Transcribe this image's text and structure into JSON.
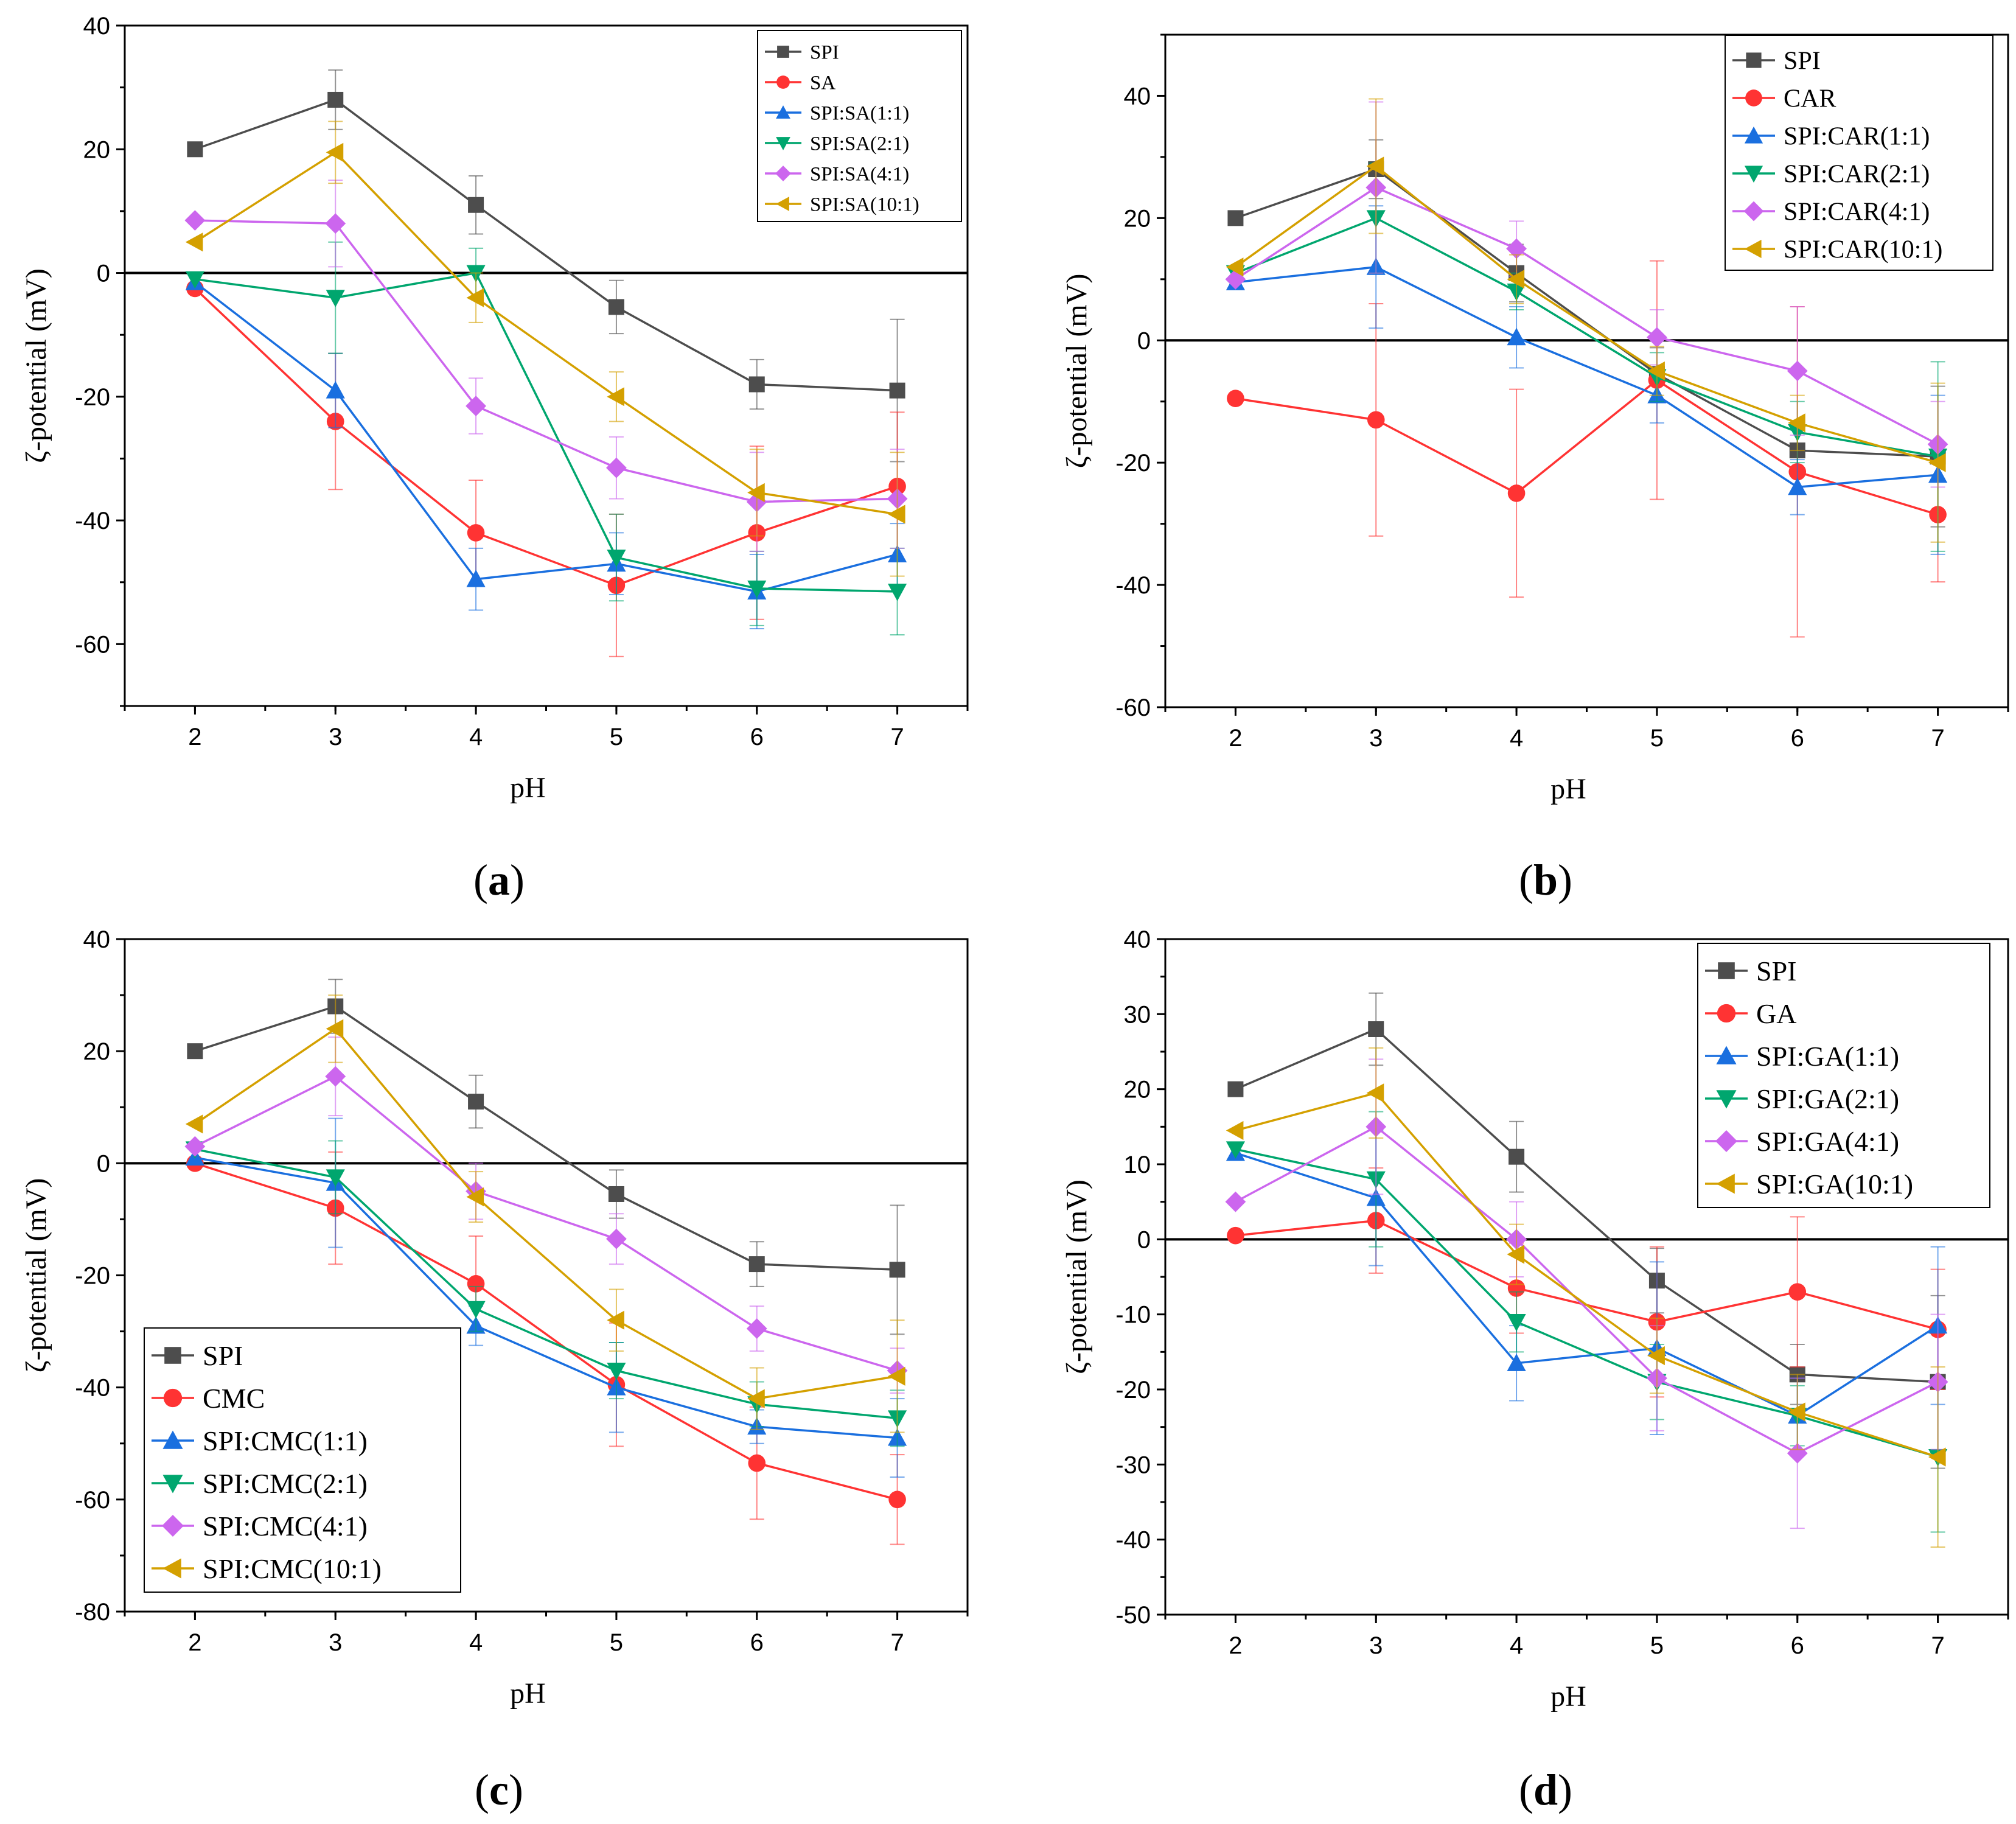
{
  "chart_data": [
    {
      "panel": "a",
      "panel_label_prefix": "(",
      "panel_label_letter": "a",
      "panel_label_suffix": ")",
      "type": "line",
      "xlabel": "pH",
      "ylabel": "ζ-potential (mV)",
      "x": [
        2,
        3,
        4,
        5,
        6,
        7
      ],
      "xlim": [
        1.5,
        7.5
      ],
      "ylim": [
        -70,
        40
      ],
      "yticks": [
        -60,
        -40,
        -20,
        0,
        20,
        40
      ],
      "xticks": [
        2,
        3,
        4,
        5,
        6,
        7
      ],
      "legend_position": "top-right",
      "series": [
        {
          "name": "SPI",
          "color": "#4d4d4d",
          "marker": "square",
          "values": [
            20,
            28,
            11,
            -5.5,
            -18,
            -19
          ],
          "errors": [
            0,
            4.8,
            4.7,
            4.3,
            4,
            11.5
          ]
        },
        {
          "name": "SA",
          "color": "#ff3333",
          "marker": "circle",
          "values": [
            -2.5,
            -24,
            -42,
            -50.5,
            -42,
            -34.5
          ],
          "errors": [
            0,
            11,
            8.5,
            11.5,
            14,
            12
          ]
        },
        {
          "name": "SPI:SA(1:1)",
          "color": "#1a6fdf",
          "marker": "triangle-up",
          "values": [
            -1.5,
            -19,
            -49.5,
            -47,
            -51.5,
            -45.5
          ],
          "errors": [
            0,
            6,
            5,
            5,
            6,
            5
          ]
        },
        {
          "name": "SPI:SA(2:1)",
          "color": "#00a66e",
          "marker": "triangle-down",
          "values": [
            -1,
            -4,
            0,
            -46,
            -51,
            -51.5
          ],
          "errors": [
            0,
            9,
            4,
            7,
            6,
            7
          ]
        },
        {
          "name": "SPI:SA(4:1)",
          "color": "#cc66ee",
          "marker": "diamond",
          "values": [
            8.5,
            8,
            -21.5,
            -31.5,
            -37,
            -36.5
          ],
          "errors": [
            0,
            7,
            4.5,
            5,
            8,
            8
          ]
        },
        {
          "name": "SPI:SA(10:1)",
          "color": "#d4a000",
          "marker": "triangle-left",
          "values": [
            5,
            19.5,
            -4,
            -20,
            -35.5,
            -39
          ],
          "errors": [
            0,
            5,
            4,
            4,
            7,
            10
          ]
        }
      ]
    },
    {
      "panel": "b",
      "panel_label_prefix": "(",
      "panel_label_letter": "b",
      "panel_label_suffix": ")",
      "type": "line",
      "xlabel": "pH",
      "ylabel": "ζ-potential (mV)",
      "x": [
        2,
        3,
        4,
        5,
        6,
        7
      ],
      "xlim": [
        1.5,
        7.5
      ],
      "ylim": [
        -60,
        50
      ],
      "yticks": [
        -60,
        -40,
        -20,
        0,
        20,
        40
      ],
      "xticks": [
        2,
        3,
        4,
        5,
        6,
        7
      ],
      "legend_position": "top-right",
      "series": [
        {
          "name": "SPI",
          "color": "#4d4d4d",
          "marker": "square",
          "values": [
            20,
            28,
            11,
            -5.5,
            -18,
            -19
          ],
          "errors": [
            0,
            4.8,
            4.7,
            4.3,
            4,
            11.5
          ]
        },
        {
          "name": "CAR",
          "color": "#ff3333",
          "marker": "circle",
          "values": [
            -9.5,
            -13,
            -25,
            -6.5,
            -21.5,
            -28.5
          ],
          "errors": [
            0,
            19,
            17,
            19.5,
            27,
            11
          ]
        },
        {
          "name": "SPI:CAR(1:1)",
          "color": "#1a6fdf",
          "marker": "triangle-up",
          "values": [
            9.5,
            12,
            0.5,
            -9,
            -24,
            -22
          ],
          "errors": [
            0,
            10,
            5,
            4.5,
            4.5,
            13
          ]
        },
        {
          "name": "SPI:CAR(2:1)",
          "color": "#00a66e",
          "marker": "triangle-down",
          "values": [
            11,
            20,
            8,
            -6,
            -15,
            -19
          ],
          "errors": [
            0,
            9,
            3,
            4,
            5,
            15.5
          ]
        },
        {
          "name": "SPI:CAR(4:1)",
          "color": "#cc66ee",
          "marker": "diamond",
          "values": [
            10,
            25,
            15,
            0.5,
            -5,
            -17
          ],
          "errors": [
            0,
            14,
            4.5,
            4.5,
            10.5,
            7
          ]
        },
        {
          "name": "SPI:CAR(10:1)",
          "color": "#d4a000",
          "marker": "triangle-left",
          "values": [
            12,
            28.5,
            10,
            -5,
            -13.5,
            -20
          ],
          "errors": [
            0,
            11,
            4,
            4,
            4.5,
            13
          ]
        }
      ]
    },
    {
      "panel": "c",
      "panel_label_prefix": "(",
      "panel_label_letter": "c",
      "panel_label_suffix": ")",
      "type": "line",
      "xlabel": "pH",
      "ylabel": "ζ-potential (mV)",
      "x": [
        2,
        3,
        4,
        5,
        6,
        7
      ],
      "xlim": [
        1.5,
        7.5
      ],
      "ylim": [
        -80,
        40
      ],
      "yticks": [
        -80,
        -60,
        -40,
        -20,
        0,
        20,
        40
      ],
      "xticks": [
        2,
        3,
        4,
        5,
        6,
        7
      ],
      "legend_position": "bottom-left",
      "series": [
        {
          "name": "SPI",
          "color": "#4d4d4d",
          "marker": "square",
          "values": [
            20,
            28,
            11,
            -5.5,
            -18,
            -19
          ],
          "errors": [
            0,
            4.8,
            4.7,
            4.3,
            4,
            11.5
          ]
        },
        {
          "name": "CMC",
          "color": "#ff3333",
          "marker": "circle",
          "values": [
            0,
            -8,
            -21.5,
            -39.5,
            -53.5,
            -60
          ],
          "errors": [
            0,
            10,
            8.5,
            11,
            10,
            8
          ]
        },
        {
          "name": "SPI:CMC(1:1)",
          "color": "#1a6fdf",
          "marker": "triangle-up",
          "values": [
            1,
            -3.5,
            -29,
            -40,
            -47,
            -49
          ],
          "errors": [
            0,
            11.5,
            3.5,
            8,
            3,
            7
          ]
        },
        {
          "name": "SPI:CMC(2:1)",
          "color": "#00a66e",
          "marker": "triangle-down",
          "values": [
            2.5,
            -2.5,
            -26,
            -37,
            -43,
            -45.5
          ],
          "errors": [
            0,
            6.5,
            4,
            5,
            4,
            5
          ]
        },
        {
          "name": "SPI:CMC(4:1)",
          "color": "#cc66ee",
          "marker": "diamond",
          "values": [
            3,
            15.5,
            -5,
            -13.5,
            -29.5,
            -37
          ],
          "errors": [
            0,
            7,
            5,
            4.5,
            4,
            4
          ]
        },
        {
          "name": "SPI:CMC(10:1)",
          "color": "#d4a000",
          "marker": "triangle-left",
          "values": [
            7,
            24,
            -6,
            -28,
            -42,
            -38
          ],
          "errors": [
            0,
            6,
            4.5,
            5.5,
            5.5,
            10
          ]
        }
      ]
    },
    {
      "panel": "d",
      "panel_label_prefix": "(",
      "panel_label_letter": "d",
      "panel_label_suffix": ")",
      "type": "line",
      "xlabel": "pH",
      "ylabel": "ζ-potential (mV)",
      "x": [
        2,
        3,
        4,
        5,
        6,
        7
      ],
      "xlim": [
        1.5,
        7.5
      ],
      "ylim": [
        -50,
        40
      ],
      "yticks": [
        -50,
        -40,
        -30,
        -20,
        -10,
        0,
        10,
        20,
        30,
        40
      ],
      "xticks": [
        2,
        3,
        4,
        5,
        6,
        7
      ],
      "legend_position": "top-right",
      "series": [
        {
          "name": "SPI",
          "color": "#4d4d4d",
          "marker": "square",
          "values": [
            20,
            28,
            11,
            -5.5,
            -18,
            -19
          ],
          "errors": [
            0,
            4.8,
            4.7,
            4.3,
            4,
            11.5
          ]
        },
        {
          "name": "GA",
          "color": "#ff3333",
          "marker": "circle",
          "values": [
            0.5,
            2.5,
            -6.5,
            -11,
            -7,
            -12
          ],
          "errors": [
            0,
            7,
            6,
            10,
            10,
            8
          ]
        },
        {
          "name": "SPI:GA(1:1)",
          "color": "#1a6fdf",
          "marker": "triangle-up",
          "values": [
            11.5,
            5.5,
            -16.5,
            -14.5,
            -23.5,
            -11.5
          ],
          "errors": [
            0,
            9,
            5,
            11.5,
            5,
            10.5
          ]
        },
        {
          "name": "SPI:GA(2:1)",
          "color": "#00a66e",
          "marker": "triangle-down",
          "values": [
            12,
            8,
            -11,
            -19,
            -23.5,
            -29
          ],
          "errors": [
            0,
            9,
            4,
            5,
            4,
            10
          ]
        },
        {
          "name": "SPI:GA(4:1)",
          "color": "#cc66ee",
          "marker": "diamond",
          "values": [
            5,
            15,
            0,
            -18.5,
            -28.5,
            -19
          ],
          "errors": [
            0,
            9,
            5,
            7,
            10,
            9
          ]
        },
        {
          "name": "SPI:GA(10:1)",
          "color": "#d4a000",
          "marker": "triangle-left",
          "values": [
            14.5,
            19.5,
            -2,
            -15.5,
            -23,
            -29
          ],
          "errors": [
            0,
            6,
            4,
            5,
            5,
            12
          ]
        }
      ]
    }
  ]
}
